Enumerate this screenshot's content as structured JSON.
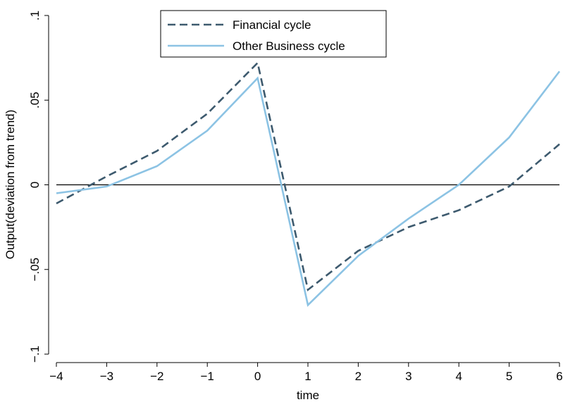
{
  "chart_data": {
    "type": "line",
    "xlabel": "time",
    "ylabel": "Output(deviation from trend)",
    "x": [
      -4,
      -3,
      -2,
      -1,
      0,
      1,
      2,
      3,
      4,
      5,
      6
    ],
    "xlim": [
      -4,
      6
    ],
    "ylim": [
      -0.1,
      0.1
    ],
    "x_ticks": [
      -4,
      -3,
      -2,
      -1,
      0,
      1,
      2,
      3,
      4,
      5,
      6
    ],
    "x_tick_labels": [
      "−4",
      "−3",
      "−2",
      "−1",
      "0",
      "1",
      "2",
      "3",
      "4",
      "5",
      "6"
    ],
    "y_ticks": [
      -0.1,
      -0.05,
      0,
      0.05,
      0.1
    ],
    "y_tick_labels": [
      "−.1",
      "−.05",
      "0",
      ".05",
      ".1"
    ],
    "reference_line_y": 0,
    "grid": false,
    "legend_position": "top-center",
    "series": [
      {
        "name": "Financial cycle",
        "style": "dashed",
        "color": "#3d5a6e",
        "values": [
          -0.011,
          0.005,
          0.02,
          0.042,
          0.072,
          -0.062,
          -0.039,
          -0.025,
          -0.015,
          -0.001,
          0.024
        ]
      },
      {
        "name": "Other Business cycle",
        "style": "solid",
        "color": "#8cc3e4",
        "values": [
          -0.005,
          -0.001,
          0.011,
          0.032,
          0.063,
          -0.071,
          -0.042,
          -0.02,
          0.0,
          0.028,
          0.067
        ]
      }
    ]
  }
}
